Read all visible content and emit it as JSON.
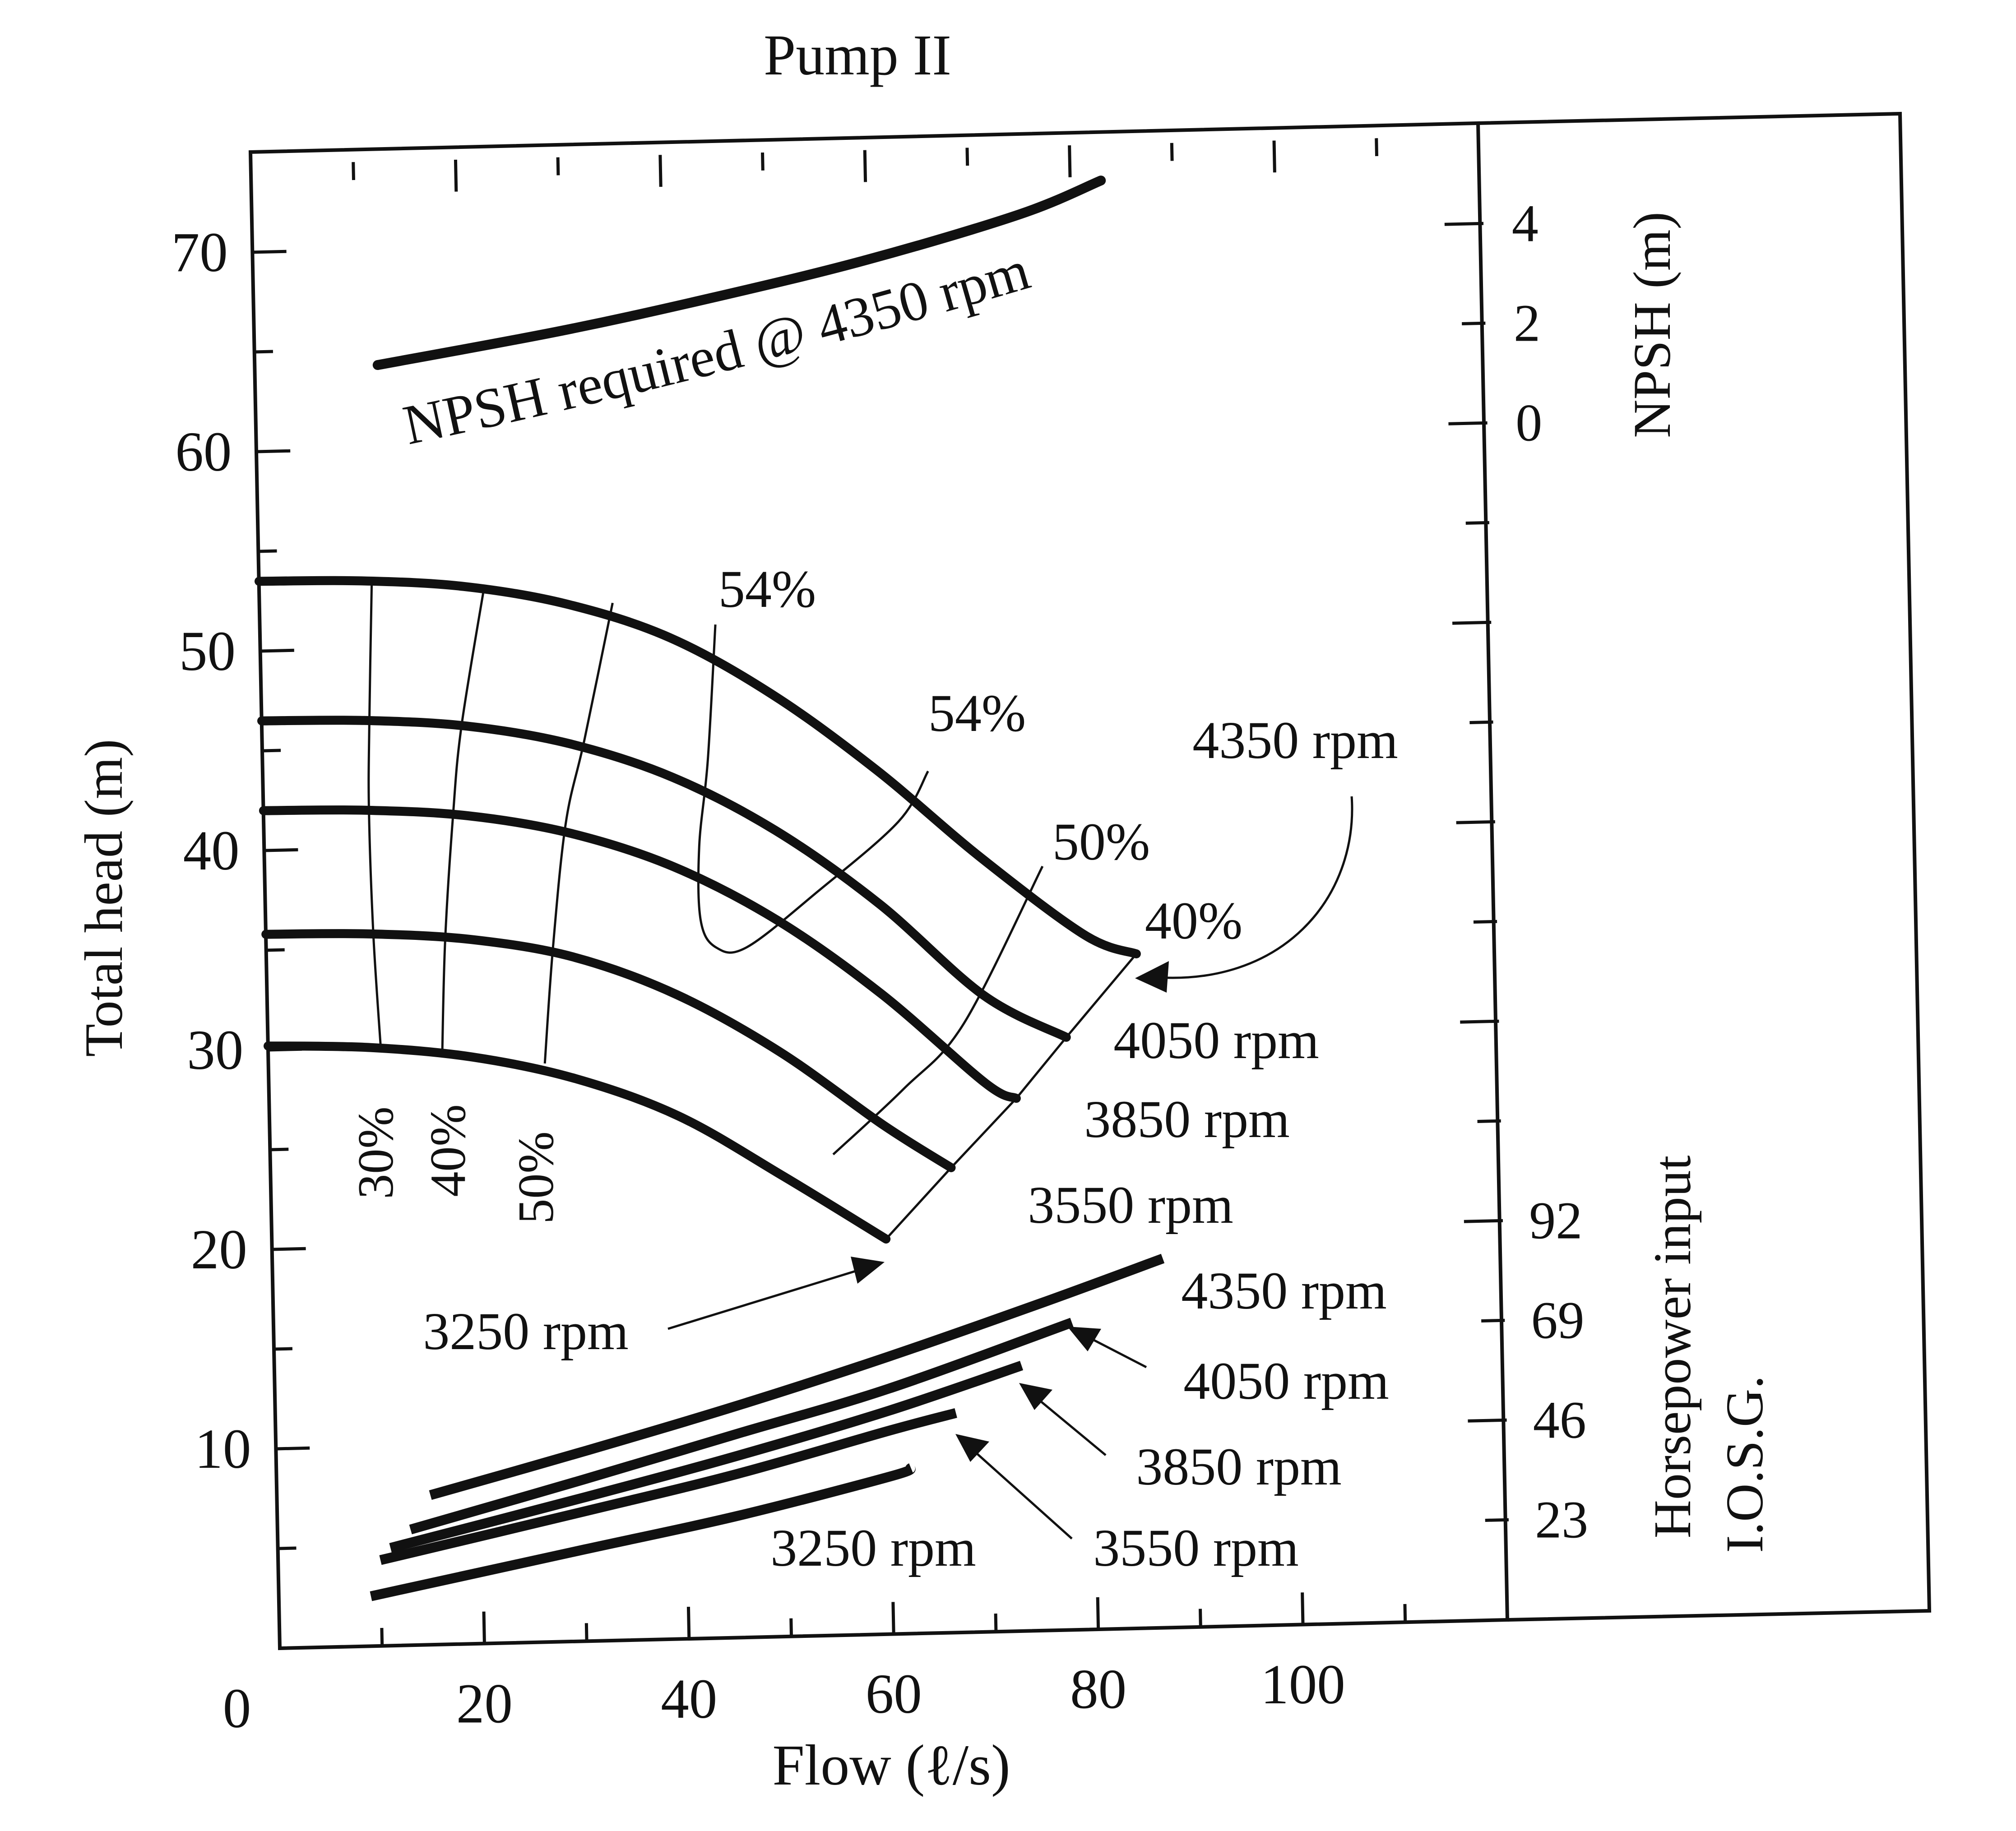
{
  "chart_data": {
    "type": "line",
    "title": "Pump II",
    "xlabel": "Flow (ℓ/s)",
    "ylabel": "Total head (m)",
    "xlim": [
      0,
      120
    ],
    "ylim": [
      0,
      75
    ],
    "x_ticks": [
      0,
      20,
      40,
      60,
      80,
      100
    ],
    "y_ticks": [
      10,
      20,
      30,
      40,
      50,
      60,
      70
    ],
    "right_axis_npsh": {
      "label": "NPSH (m)",
      "ticks": [
        0,
        2,
        4
      ]
    },
    "right_axis_power": {
      "label_line1": "Horsepower input",
      "label_line2": "I.O.S.G.",
      "ticks": [
        23,
        46,
        69,
        92
      ]
    },
    "head_series": [
      {
        "name": "4350 rpm",
        "x": [
          0,
          10,
          20,
          30,
          40,
          50,
          60,
          70,
          80,
          85
        ],
        "y": [
          53.5,
          53.4,
          53.0,
          52.0,
          50.2,
          47.2,
          43.3,
          38.8,
          34.8,
          33.8
        ]
      },
      {
        "name": "4050 rpm",
        "x": [
          0,
          10,
          20,
          30,
          40,
          50,
          60,
          70,
          78
        ],
        "y": [
          46.5,
          46.4,
          46.0,
          45.0,
          43.2,
          40.4,
          36.6,
          31.9,
          29.7
        ]
      },
      {
        "name": "3850 rpm",
        "x": [
          0,
          10,
          20,
          30,
          40,
          50,
          60,
          70,
          73
        ],
        "y": [
          42.0,
          41.9,
          41.5,
          40.5,
          38.7,
          35.9,
          32.1,
          27.5,
          26.7
        ]
      },
      {
        "name": "3550 rpm",
        "x": [
          0,
          10,
          20,
          30,
          40,
          50,
          60,
          66.5
        ],
        "y": [
          35.8,
          35.7,
          35.3,
          34.3,
          32.3,
          29.3,
          25.5,
          23.3
        ]
      },
      {
        "name": "3250 rpm",
        "x": [
          0,
          10,
          20,
          30,
          40,
          50,
          60
        ],
        "y": [
          30.2,
          30.0,
          29.4,
          28.2,
          26.2,
          23.1,
          19.8
        ]
      }
    ],
    "power_series": [
      {
        "name": "4350 rpm",
        "x": [
          15,
          30,
          45,
          60,
          75,
          87
        ],
        "y": [
          7.5,
          9.5,
          11.6,
          13.9,
          16.4,
          18.5
        ]
      },
      {
        "name": "4050 rpm",
        "x": [
          13,
          30,
          45,
          60,
          78
        ],
        "y": [
          5.8,
          8.1,
          10.2,
          12.3,
          15.4
        ]
      },
      {
        "name": "3850 rpm",
        "x": [
          11,
          30,
          45,
          60,
          73
        ],
        "y": [
          4.9,
          7.2,
          9.1,
          11.2,
          13.3
        ]
      },
      {
        "name": "3550 rpm",
        "x": [
          10,
          30,
          45,
          60,
          66.5
        ],
        "y": [
          4.3,
          6.5,
          8.2,
          10.2,
          11.0
        ]
      },
      {
        "name": "3250 rpm",
        "x": [
          9,
          30,
          45,
          60,
          62
        ],
        "y": [
          2.5,
          4.6,
          6.1,
          7.9,
          8.3
        ]
      }
    ],
    "npsh_required": {
      "name": "NPSH required @ 4350 rpm",
      "x": [
        12,
        30,
        45,
        60,
        75,
        83
      ],
      "y": [
        64.2,
        65.7,
        67.2,
        68.9,
        71.0,
        72.6
      ]
    },
    "efficiency_contours": [
      {
        "label": "30%",
        "points": [
          [
            11,
            53.2
          ],
          [
            10.5,
            46.2
          ],
          [
            10.3,
            41.8
          ],
          [
            10.5,
            35.6
          ],
          [
            11,
            30.0
          ]
        ]
      },
      {
        "label": "40%",
        "points": [
          [
            22,
            53.0
          ],
          [
            19.5,
            46.0
          ],
          [
            18.5,
            41.5
          ],
          [
            17.5,
            35.3
          ],
          [
            17,
            29.6
          ]
        ]
      },
      {
        "label": "50%",
        "points": [
          [
            34.5,
            52.0
          ],
          [
            31.5,
            45.2
          ],
          [
            29.5,
            41.0
          ],
          [
            28,
            34.7
          ],
          [
            27,
            29.0
          ]
        ]
      },
      {
        "label": "54%",
        "points": [
          [
            44.5,
            50.8
          ],
          [
            43.5,
            44.0
          ],
          [
            42.5,
            39.7
          ],
          [
            42.5,
            36.0
          ],
          [
            44,
            34.6
          ],
          [
            47,
            34.6
          ],
          [
            54,
            37.3
          ],
          [
            62,
            40.7
          ],
          [
            65,
            43.2
          ]
        ]
      },
      {
        "label": "50%",
        "points": [
          [
            55,
            24.1
          ],
          [
            62,
            27.3
          ],
          [
            68,
            30.5
          ],
          [
            76,
            38.3
          ]
        ]
      }
    ],
    "annotations": {
      "npsh_label": "NPSH required @ 4350 rpm",
      "head_eff_labels": [
        "54%",
        "54%",
        "50%",
        "40%"
      ],
      "bottom_eff_labels": [
        "30%",
        "40%",
        "50%"
      ],
      "head_rpm_labels": [
        "4350 rpm",
        "4050 rpm",
        "3850 rpm",
        "3550 rpm",
        "3250 rpm"
      ],
      "power_rpm_labels": [
        "4350 rpm",
        "4050 rpm",
        "3850 rpm",
        "3550 rpm",
        "3250 rpm"
      ]
    },
    "grid": false,
    "legend": "none"
  }
}
